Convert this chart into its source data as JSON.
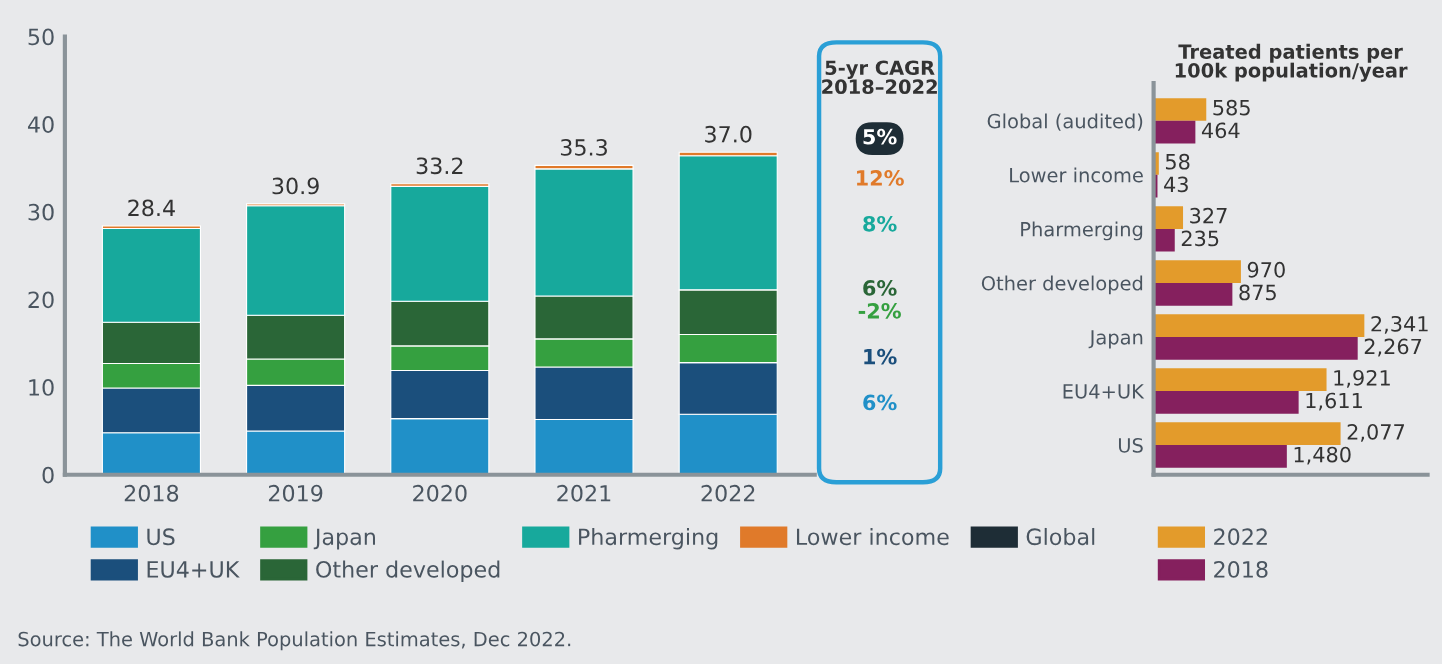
{
  "chart_data": [
    {
      "type": "bar",
      "stacked": true,
      "categories": [
        "2018",
        "2019",
        "2020",
        "2021",
        "2022"
      ],
      "ylim": [
        0,
        50
      ],
      "yticks": [
        0,
        10,
        20,
        30,
        40,
        50
      ],
      "grid": false,
      "legend": "bottom",
      "series": [
        {
          "name": "US",
          "color": "#2090c8",
          "values": [
            4.8,
            5.0,
            6.4,
            6.3,
            6.9
          ]
        },
        {
          "name": "EU4+UK",
          "color": "#1b4f7c",
          "values": [
            5.1,
            5.2,
            5.5,
            6.0,
            5.9
          ]
        },
        {
          "name": "Japan",
          "color": "#35a040",
          "values": [
            2.8,
            3.0,
            2.8,
            3.2,
            3.2
          ]
        },
        {
          "name": "Other developed",
          "color": "#2a6637",
          "values": [
            4.7,
            5.0,
            5.1,
            4.9,
            5.1
          ]
        },
        {
          "name": "Pharmerging",
          "color": "#17a99c",
          "values": [
            10.7,
            12.5,
            13.1,
            14.5,
            15.3
          ]
        },
        {
          "name": "Lower income",
          "color": "#e07a2a",
          "values": [
            0.3,
            0.2,
            0.3,
            0.4,
            0.4
          ]
        }
      ],
      "totals": [
        "28.4",
        "30.9",
        "33.2",
        "35.3",
        "37.0"
      ],
      "annotations": [
        "Source: The World Bank Population Estimates, Dec 2022."
      ]
    },
    {
      "type": "other",
      "title": "5-yr CAGR\n2018–2022",
      "annotations": [
        "5%",
        "12%",
        "8%",
        "6%",
        "-2%",
        "1%",
        "6%"
      ],
      "colors": [
        "#1e2d36",
        "#e07a2a",
        "#17a99c",
        "#2a6637",
        "#35a040",
        "#1b4f7c",
        "#2090c8"
      ],
      "series": [
        {
          "name": "Global",
          "color": "#1e2d36"
        }
      ]
    },
    {
      "type": "bar",
      "orientation": "horizontal",
      "title": "Treated patients per\n100k population/year",
      "legend": "bottom",
      "tick_labels": "y",
      "categories": [
        "Global (audited)",
        "Lower income",
        "Pharmerging",
        "Other developed",
        "Japan",
        "EU4+UK",
        "US"
      ],
      "series": [
        {
          "name": "2022",
          "color": "#e39b2b",
          "values": [
            585,
            58,
            327,
            970,
            2341,
            1921,
            2077
          ],
          "value_labels": [
            "585",
            "58",
            "327",
            "970",
            "2,341",
            "1,921",
            "2,077"
          ]
        },
        {
          "name": "2018",
          "color": "#85205e",
          "values": [
            464,
            43,
            235,
            875,
            2267,
            1611,
            1480
          ],
          "value_labels": [
            "464",
            "43",
            "235",
            "875",
            "2,267",
            "1,611",
            "1,480"
          ]
        }
      ]
    }
  ]
}
